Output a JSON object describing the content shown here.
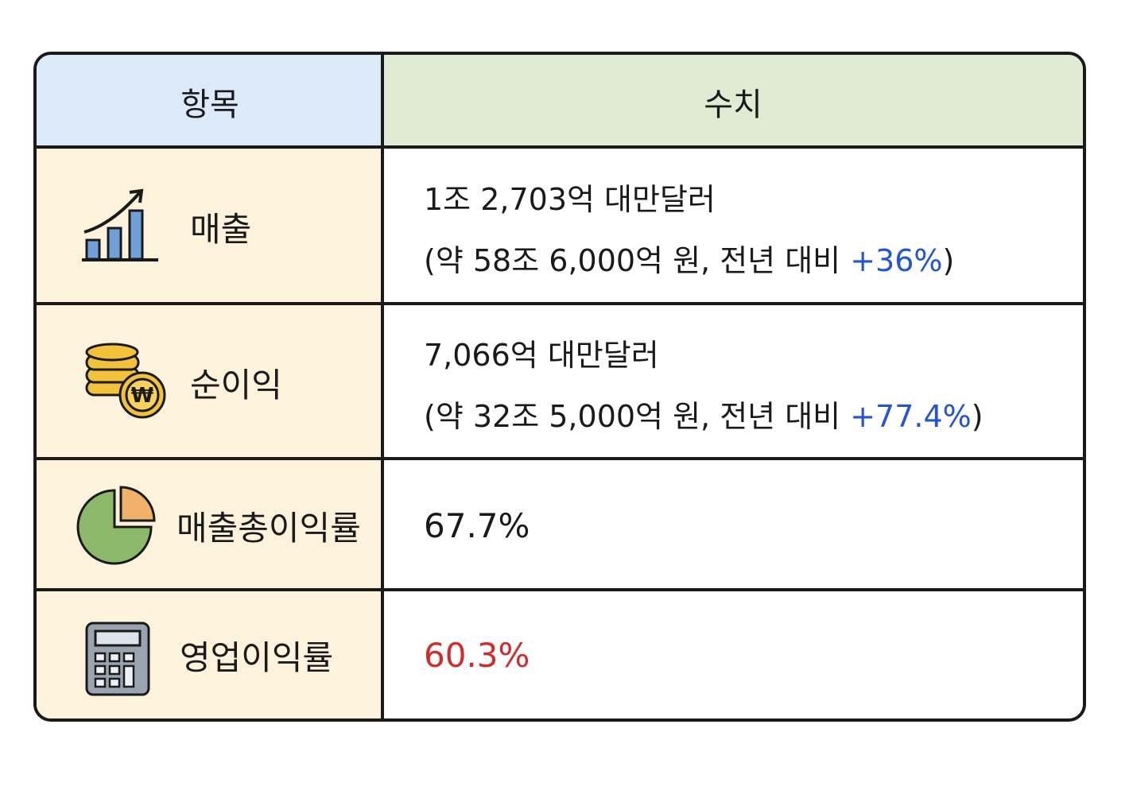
{
  "header": {
    "item": "항목",
    "value": "수치"
  },
  "rows": [
    {
      "label": "매출",
      "line1": "1조 2,703억 대만달러",
      "line2": {
        "before": "(약 58조 6,000억 원, 전년 대비",
        "highlight": "+36%",
        "after": ")"
      }
    },
    {
      "label": "순이익",
      "line1": "7,066억 대만달러",
      "line2": {
        "before": "(약 32조 5,000억 원, 전년 대비",
        "highlight": "+77.4%",
        "after": ")"
      }
    },
    {
      "label": "매출총이익률",
      "value": "67.7%"
    },
    {
      "label": "영업이익률",
      "value": "60.3%"
    }
  ]
}
